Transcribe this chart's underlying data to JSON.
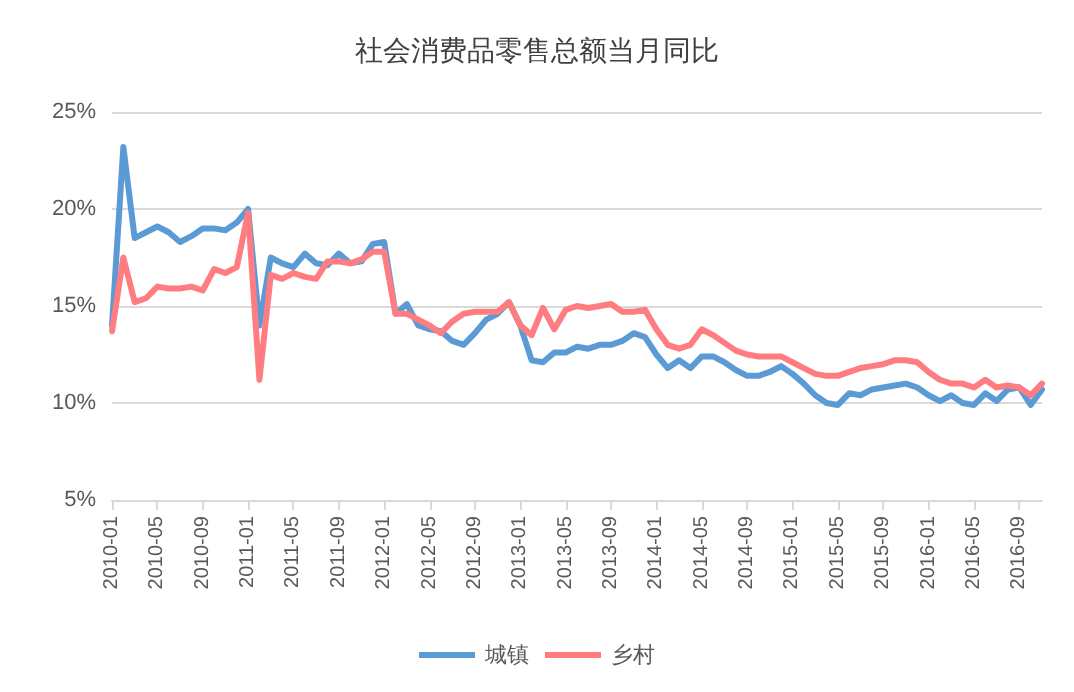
{
  "chart_data": {
    "type": "line",
    "title": "社会消费品零售总额当月同比",
    "categories": [
      "2010-01",
      null,
      null,
      null,
      "2010-05",
      null,
      null,
      null,
      "2010-09",
      null,
      null,
      null,
      "2011-01",
      null,
      null,
      null,
      "2011-05",
      null,
      null,
      null,
      "2011-09",
      null,
      null,
      null,
      "2012-01",
      null,
      null,
      null,
      "2012-05",
      null,
      null,
      null,
      "2012-09",
      null,
      null,
      null,
      "2013-01",
      null,
      null,
      null,
      "2013-05",
      null,
      null,
      null,
      "2013-09",
      null,
      null,
      null,
      "2014-01",
      null,
      null,
      null,
      "2014-05",
      null,
      null,
      null,
      "2014-09",
      null,
      null,
      null,
      "2015-01",
      null,
      null,
      null,
      "2015-05",
      null,
      null,
      null,
      "2015-09",
      null,
      null,
      null,
      "2016-01",
      null,
      null,
      null,
      "2016-05",
      null,
      null,
      null,
      "2016-09",
      null,
      null
    ],
    "series": [
      {
        "name": "城镇",
        "color": "#5b9bd5",
        "values": [
          14,
          23.2,
          18.5,
          18.8,
          19.1,
          18.8,
          18.3,
          18.6,
          19.0,
          19.0,
          18.9,
          19.3,
          20.0,
          14,
          17.5,
          17.2,
          17.0,
          17.7,
          17.2,
          17.1,
          17.7,
          17.2,
          17.3,
          18.2,
          18.3,
          14.6,
          15.1,
          14.0,
          13.8,
          13.7,
          13.2,
          13.0,
          13.6,
          14.3,
          14.6,
          15.2,
          14.0,
          12.2,
          12.1,
          12.6,
          12.6,
          12.9,
          12.8,
          13.0,
          13.0,
          13.2,
          13.6,
          13.4,
          12.5,
          11.8,
          12.2,
          11.8,
          12.4,
          12.4,
          12.1,
          11.7,
          11.4,
          11.4,
          11.6,
          11.9,
          11.5,
          11.0,
          10.4,
          10.0,
          9.9,
          10.5,
          10.4,
          10.7,
          10.8,
          10.9,
          11.0,
          10.8,
          10.4,
          10.1,
          10.4,
          10.0,
          9.9,
          10.5,
          10.1,
          10.7,
          10.8,
          9.9,
          10.7
        ]
      },
      {
        "name": "乡村",
        "color": "#ff7c80",
        "values": [
          13.7,
          17.5,
          15.2,
          15.4,
          16.0,
          15.9,
          15.9,
          16.0,
          15.8,
          16.9,
          16.7,
          17.0,
          19.8,
          11.2,
          16.6,
          16.4,
          16.7,
          16.5,
          16.4,
          17.3,
          17.3,
          17.2,
          17.4,
          17.8,
          17.8,
          14.6,
          14.6,
          14.3,
          14.0,
          13.6,
          14.2,
          14.6,
          14.7,
          14.7,
          14.7,
          15.2,
          14.0,
          13.5,
          14.9,
          13.8,
          14.8,
          15.0,
          14.9,
          15.0,
          15.1,
          14.7,
          14.7,
          14.8,
          13.8,
          13.0,
          12.8,
          13.0,
          13.8,
          13.5,
          13.1,
          12.7,
          12.5,
          12.4,
          12.4,
          12.4,
          12.1,
          11.8,
          11.5,
          11.4,
          11.4,
          11.6,
          11.8,
          11.9,
          12.0,
          12.2,
          12.2,
          12.1,
          11.6,
          11.2,
          11.0,
          11.0,
          10.8,
          11.2,
          10.8,
          10.9,
          10.8,
          10.4,
          11.0
        ]
      }
    ],
    "ylim": [
      5,
      25
    ],
    "yticks": [
      {
        "value": 5,
        "label": "5%"
      },
      {
        "value": 10,
        "label": "10%"
      },
      {
        "value": 15,
        "label": "15%"
      },
      {
        "value": 20,
        "label": "20%"
      },
      {
        "value": 25,
        "label": "25%"
      }
    ],
    "grid": "y",
    "legend": "bottom",
    "marker": "none",
    "line_style": "solid"
  }
}
